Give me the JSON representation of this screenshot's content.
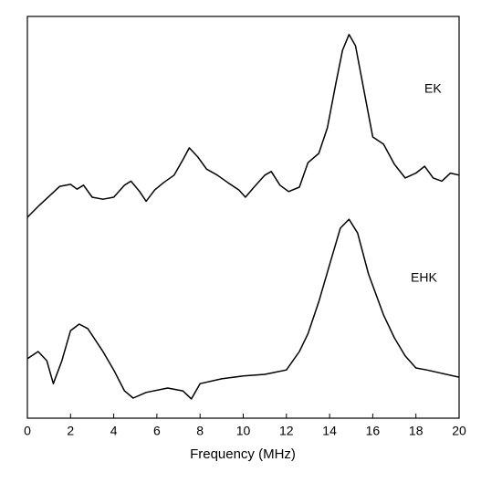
{
  "chart_data": {
    "type": "line",
    "xlabel": "Frequency (MHz)",
    "xlim": [
      0,
      20
    ],
    "xticks": [
      0,
      2,
      4,
      6,
      8,
      10,
      12,
      14,
      16,
      18,
      20
    ],
    "ylim": [
      0,
      100
    ],
    "series": [
      {
        "name": "EK",
        "color": "#000000",
        "x": [
          0,
          0.5,
          1,
          1.5,
          2,
          2.3,
          2.6,
          3,
          3.5,
          4,
          4.5,
          4.8,
          5.2,
          5.5,
          5.9,
          6.3,
          6.8,
          7.2,
          7.5,
          7.9,
          8.3,
          8.8,
          9.3,
          9.8,
          10.1,
          10.5,
          11,
          11.3,
          11.7,
          12.1,
          12.6,
          13,
          13.5,
          13.9,
          14.3,
          14.6,
          14.9,
          15.2,
          15.6,
          16,
          16.5,
          17,
          17.5,
          18,
          18.4,
          18.8,
          19.2,
          19.6,
          20
        ],
        "values": [
          50,
          52.7,
          55.2,
          57.7,
          58.2,
          57,
          58,
          55,
          54.5,
          55,
          58,
          59,
          56.4,
          54,
          56.8,
          58.6,
          60.5,
          64.3,
          67.3,
          65,
          62,
          60.5,
          58.6,
          56.8,
          55,
          57.5,
          60.5,
          61.4,
          58,
          56.4,
          57.5,
          63.6,
          65.9,
          72.3,
          83.6,
          91.6,
          95.5,
          92.7,
          81.4,
          70,
          68.2,
          63.2,
          59.8,
          61,
          62.7,
          59.8,
          59,
          61,
          60.5
        ]
      },
      {
        "name": "EHK",
        "color": "#000000",
        "x": [
          0,
          0.5,
          0.9,
          1.2,
          1.6,
          2,
          2.4,
          2.8,
          3.5,
          4,
          4.5,
          4.9,
          5.5,
          6.5,
          7.2,
          7.6,
          8,
          9,
          10,
          11,
          12,
          12.6,
          13,
          13.5,
          14,
          14.5,
          14.9,
          15.3,
          15.8,
          16.5,
          17,
          17.5,
          18,
          18.5,
          19,
          20
        ],
        "values": [
          14.8,
          16.6,
          14.3,
          8.6,
          14.3,
          21.8,
          23.4,
          22.3,
          16.6,
          12,
          6.8,
          5,
          6.4,
          7.5,
          6.8,
          4.8,
          8.6,
          9.8,
          10.5,
          10.9,
          12,
          16.6,
          21,
          29,
          38.2,
          47.3,
          49.5,
          46.1,
          35.9,
          25.7,
          20,
          15.5,
          12.5,
          12,
          11.4,
          10.2
        ]
      }
    ]
  }
}
